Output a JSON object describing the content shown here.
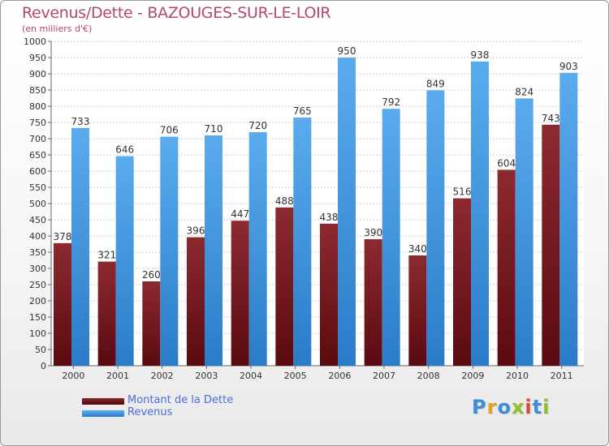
{
  "chart_data": {
    "type": "bar",
    "title": "Revenus/Dette - BAZOUGES-SUR-LE-LOIR",
    "subtitle": "(en milliers d'€)",
    "xlabel": "",
    "ylabel": "",
    "categories": [
      "2000",
      "2001",
      "2002",
      "2003",
      "2004",
      "2005",
      "2006",
      "2007",
      "2008",
      "2009",
      "2010",
      "2011"
    ],
    "series": [
      {
        "name": "Montant de la Dette",
        "color": "#7a1a22",
        "values": [
          378,
          321,
          260,
          396,
          447,
          488,
          438,
          390,
          340,
          516,
          604,
          743
        ]
      },
      {
        "name": "Revenus",
        "color": "#4a9de0",
        "values": [
          733,
          646,
          706,
          710,
          720,
          765,
          950,
          792,
          849,
          938,
          824,
          903
        ]
      }
    ],
    "ylim": [
      0,
      1000
    ],
    "ytick_step": 50,
    "yticks": [
      "0",
      "50",
      "100",
      "150",
      "200",
      "250",
      "300",
      "350",
      "400",
      "450",
      "500",
      "550",
      "600",
      "650",
      "700",
      "750",
      "800",
      "850",
      "900",
      "950",
      "1000"
    ],
    "grid": true,
    "legend_position": "bottom-left"
  },
  "colors": {
    "title": "#b5476a",
    "legend_text": "#4a6fd8",
    "grid": "#cccccc",
    "axis": "#666666"
  },
  "brand": {
    "letters": [
      "P",
      "r",
      "o",
      "x",
      "i",
      "t",
      "i"
    ],
    "colors": [
      "#3a8fd8",
      "#e6a01e",
      "#3a8fd8",
      "#8fbf2a",
      "#d94a3a",
      "#3a8fd8",
      "#8fbf2a"
    ]
  }
}
